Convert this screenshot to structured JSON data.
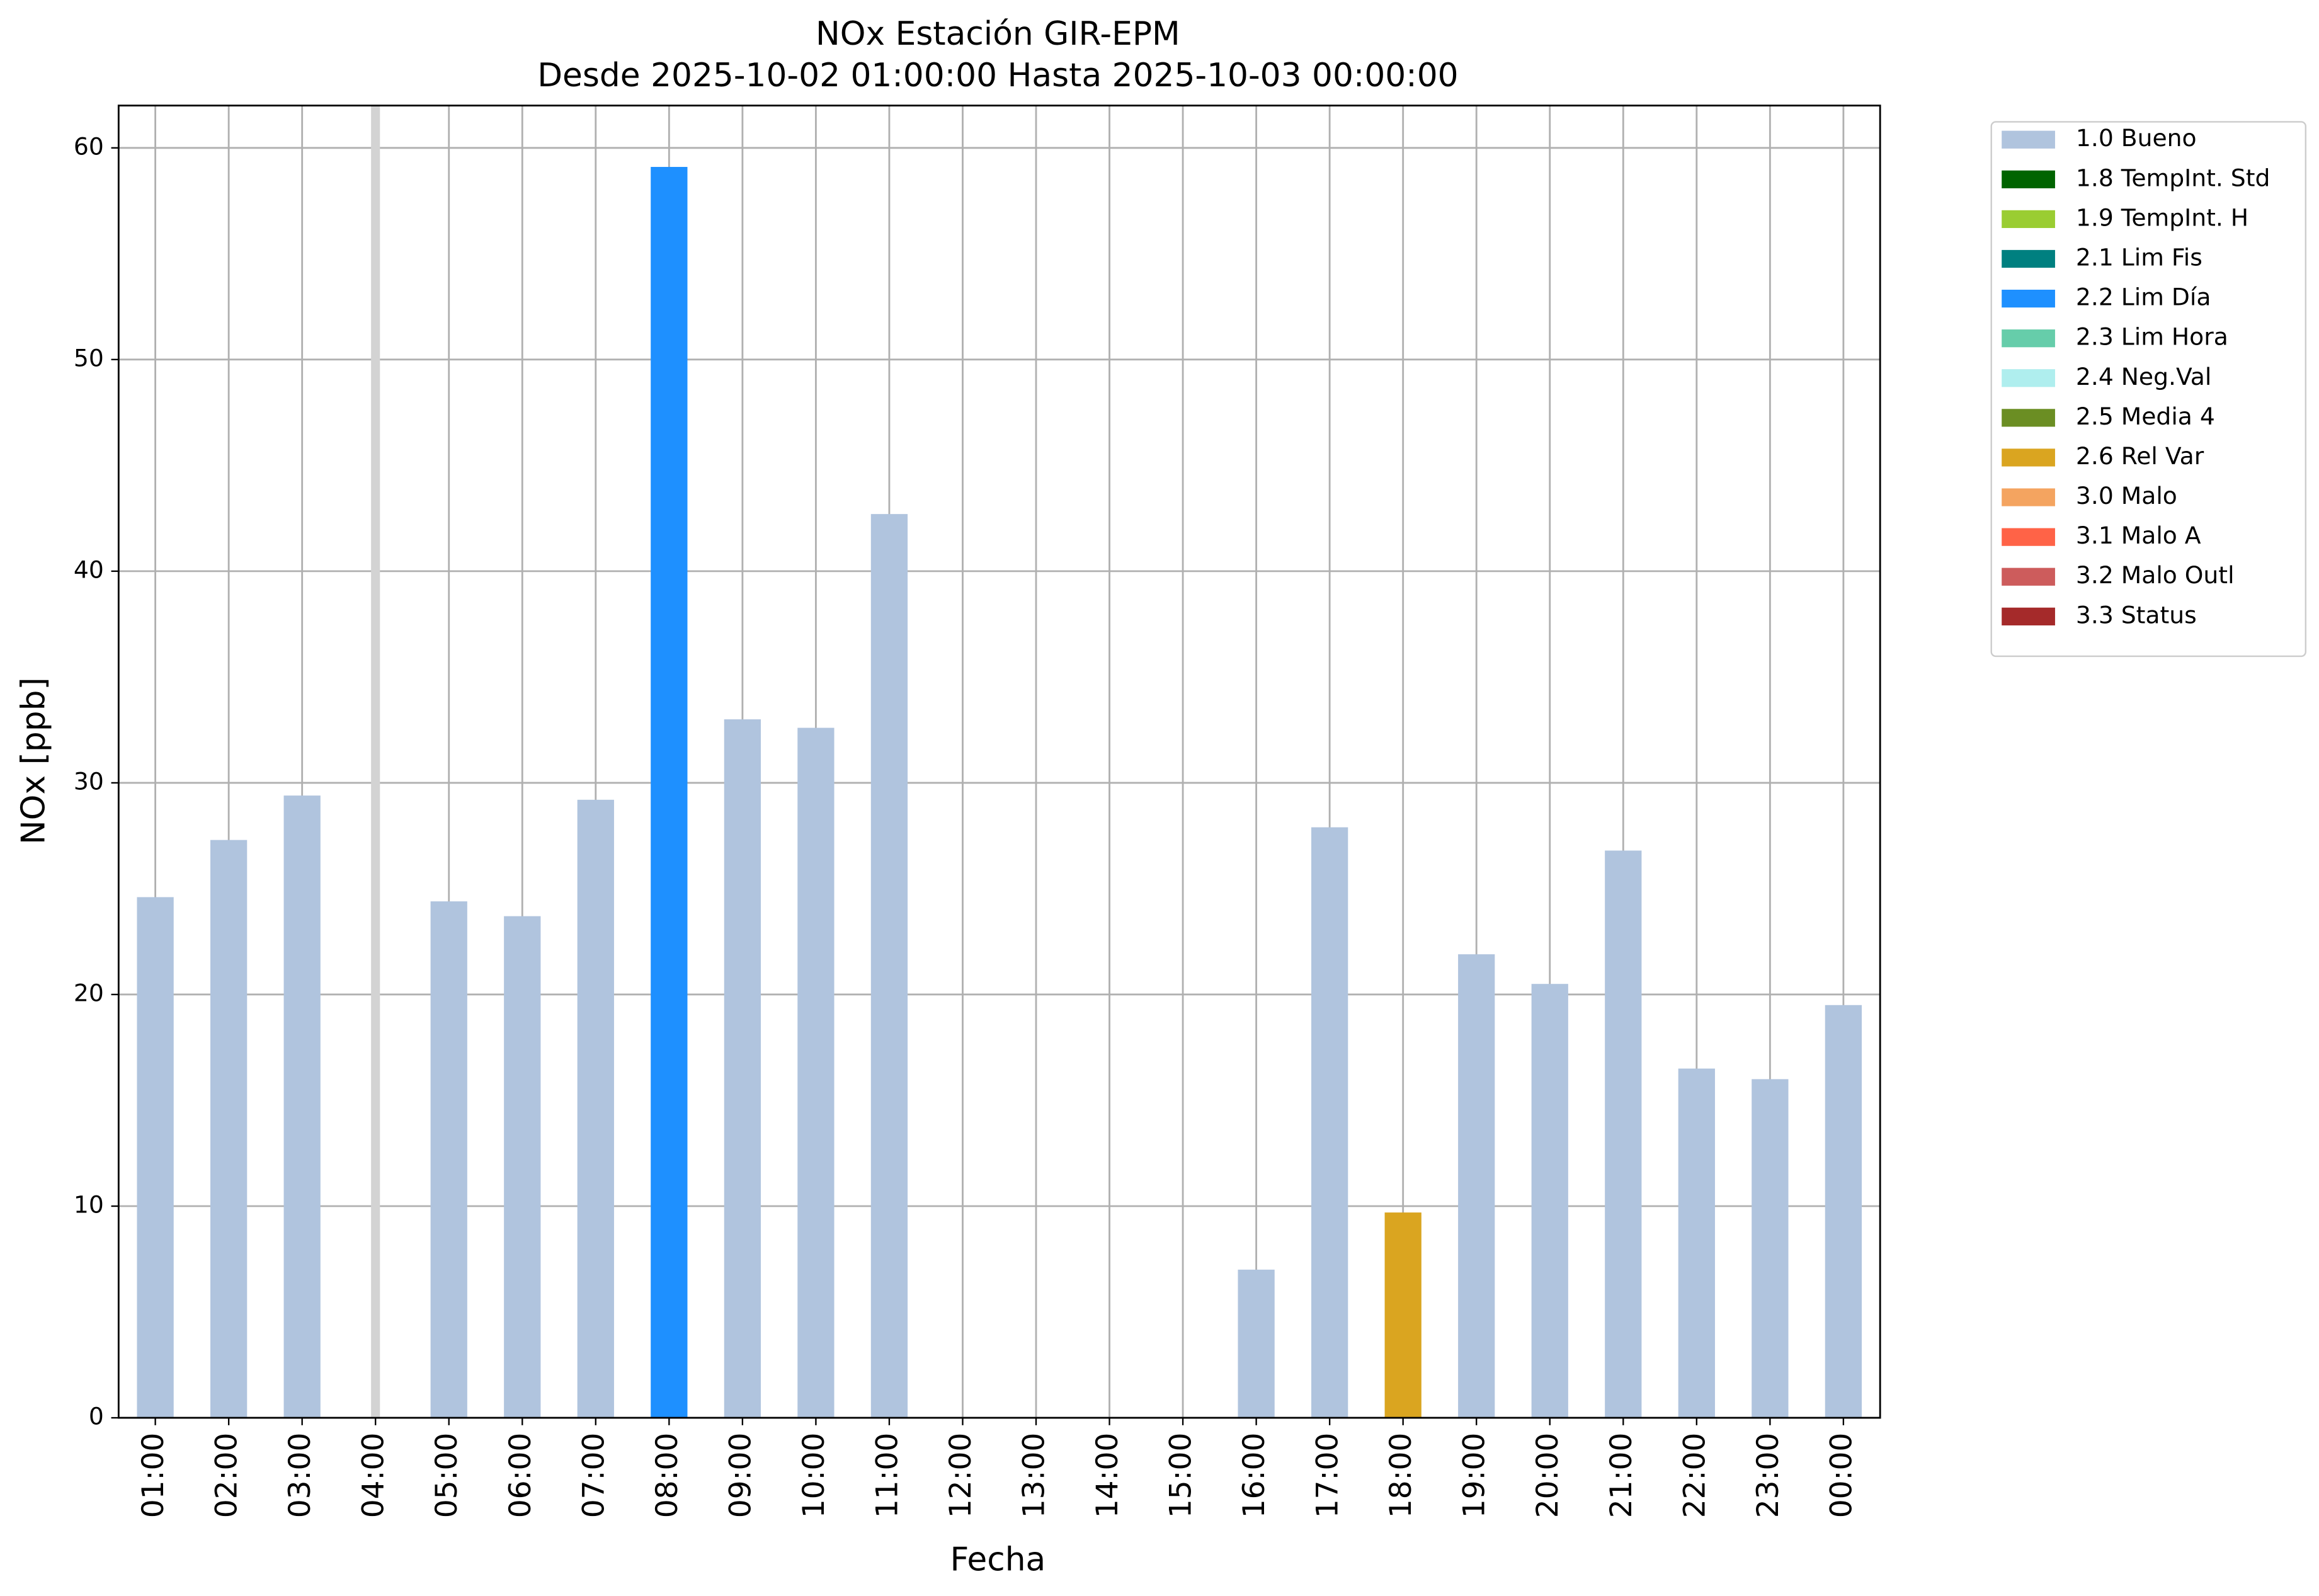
{
  "chart_data": {
    "type": "bar",
    "stacked": true,
    "title": "NOx Estación GIR-EPM",
    "subtitle": "Desde 2025-10-02 01:00:00 Hasta 2025-10-03 00:00:00",
    "xlabel": "Fecha",
    "ylabel": "NOx [ppb]",
    "categories": [
      "01:00",
      "02:00",
      "03:00",
      "04:00",
      "05:00",
      "06:00",
      "07:00",
      "08:00",
      "09:00",
      "10:00",
      "11:00",
      "12:00",
      "13:00",
      "14:00",
      "15:00",
      "16:00",
      "17:00",
      "18:00",
      "19:00",
      "20:00",
      "21:00",
      "22:00",
      "23:00",
      "00:00"
    ],
    "ylim": [
      0,
      62
    ],
    "yticks": [
      0,
      10,
      20,
      30,
      40,
      50,
      60
    ],
    "grid": true,
    "legend": "outside-upper-right",
    "series": [
      {
        "name": "1.0 Bueno",
        "color": "#b0c4de",
        "values": [
          24.6,
          27.3,
          29.4,
          null,
          24.4,
          23.7,
          29.2,
          null,
          33.0,
          32.6,
          42.7,
          null,
          null,
          null,
          null,
          7.0,
          27.9,
          null,
          21.9,
          20.5,
          26.8,
          16.5,
          16.0,
          19.5
        ]
      },
      {
        "name": "1.8 TempInt. Std",
        "color": "#006400",
        "values": [
          null,
          null,
          null,
          null,
          null,
          null,
          null,
          null,
          null,
          null,
          null,
          null,
          null,
          null,
          null,
          null,
          null,
          null,
          null,
          null,
          null,
          null,
          null,
          null
        ]
      },
      {
        "name": "1.9 TempInt. H",
        "color": "#9acd32",
        "values": [
          null,
          null,
          null,
          null,
          null,
          null,
          null,
          null,
          null,
          null,
          null,
          null,
          null,
          null,
          null,
          null,
          null,
          null,
          null,
          null,
          null,
          null,
          null,
          null
        ]
      },
      {
        "name": "2.1 Lim Fis",
        "color": "#008080",
        "values": [
          null,
          null,
          null,
          null,
          null,
          null,
          null,
          null,
          null,
          null,
          null,
          null,
          null,
          null,
          null,
          null,
          null,
          null,
          null,
          null,
          null,
          null,
          null,
          null
        ]
      },
      {
        "name": "2.2 Lim Día",
        "color": "#1e90ff",
        "values": [
          null,
          null,
          null,
          null,
          null,
          null,
          null,
          59.1,
          null,
          null,
          null,
          null,
          null,
          null,
          null,
          null,
          null,
          null,
          null,
          null,
          null,
          null,
          null,
          null
        ]
      },
      {
        "name": "2.3 Lim Hora",
        "color": "#66cdaa",
        "values": [
          null,
          null,
          null,
          null,
          null,
          null,
          null,
          null,
          null,
          null,
          null,
          null,
          null,
          null,
          null,
          null,
          null,
          null,
          null,
          null,
          null,
          null,
          null,
          null
        ]
      },
      {
        "name": "2.4 Neg.Val",
        "color": "#afeeee",
        "values": [
          null,
          null,
          null,
          null,
          null,
          null,
          null,
          null,
          null,
          null,
          null,
          null,
          null,
          null,
          null,
          null,
          null,
          null,
          null,
          null,
          null,
          null,
          null,
          null
        ]
      },
      {
        "name": "2.5 Media 4",
        "color": "#6b8e23",
        "values": [
          null,
          null,
          null,
          null,
          null,
          null,
          null,
          null,
          null,
          null,
          null,
          null,
          null,
          null,
          null,
          null,
          null,
          null,
          null,
          null,
          null,
          null,
          null,
          null
        ]
      },
      {
        "name": "2.6 Rel Var",
        "color": "#daa520",
        "values": [
          null,
          null,
          null,
          null,
          null,
          null,
          null,
          null,
          null,
          null,
          null,
          null,
          null,
          null,
          null,
          null,
          null,
          9.7,
          null,
          null,
          null,
          null,
          null,
          null
        ]
      },
      {
        "name": "3.0 Malo",
        "color": "#f4a460",
        "values": [
          null,
          null,
          null,
          null,
          null,
          null,
          null,
          null,
          null,
          null,
          null,
          null,
          null,
          null,
          null,
          null,
          null,
          null,
          null,
          null,
          null,
          null,
          null,
          null
        ]
      },
      {
        "name": "3.1 Malo A",
        "color": "#ff6347",
        "values": [
          null,
          null,
          null,
          null,
          null,
          null,
          null,
          null,
          null,
          null,
          null,
          null,
          null,
          null,
          null,
          null,
          null,
          null,
          null,
          null,
          null,
          null,
          null,
          null
        ]
      },
      {
        "name": "3.2 Malo Outl",
        "color": "#cd5c5c",
        "values": [
          null,
          null,
          null,
          null,
          null,
          null,
          null,
          null,
          null,
          null,
          null,
          null,
          null,
          null,
          null,
          null,
          null,
          null,
          null,
          null,
          null,
          null,
          null,
          null
        ]
      },
      {
        "name": "3.3 Status",
        "color": "#a52a2a",
        "values": [
          null,
          null,
          null,
          null,
          null,
          null,
          null,
          null,
          null,
          null,
          null,
          null,
          null,
          null,
          null,
          null,
          null,
          null,
          null,
          null,
          null,
          null,
          null,
          null
        ]
      }
    ]
  }
}
